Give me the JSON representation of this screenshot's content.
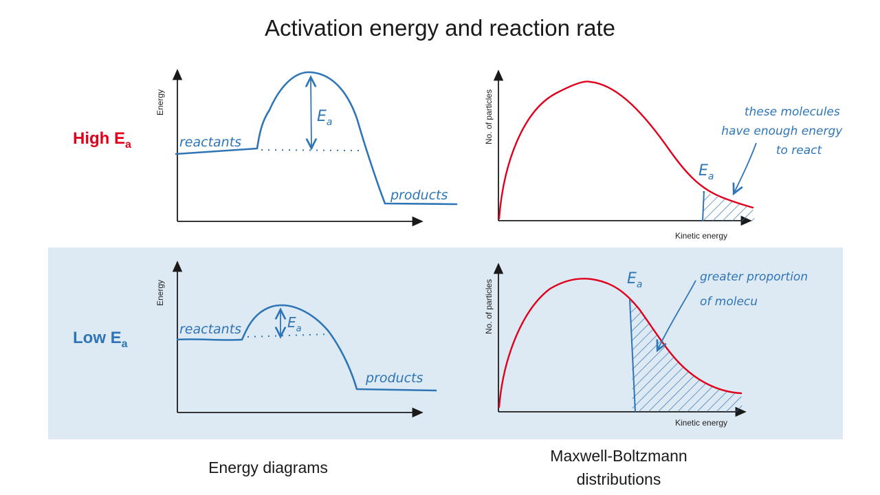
{
  "title": "Activation energy and reaction rate",
  "rows": {
    "high": {
      "label_main": "High E",
      "label_sub": "a"
    },
    "low": {
      "label_main": "Low E",
      "label_sub": "a"
    }
  },
  "captions": {
    "left": "Energy diagrams",
    "right_line1": "Maxwell-Boltzmann",
    "right_line2": "distributions"
  },
  "energy_diagram": {
    "y_axis_label": "Energy",
    "reactants_label": "reactants",
    "products_label": "products",
    "ea_label_main": "E",
    "ea_label_sub": "a"
  },
  "mb_distribution": {
    "y_axis_label": "No. of particles",
    "x_axis_label": "Kinetic energy",
    "ea_label_main": "E",
    "ea_label_sub": "a"
  },
  "annotations": {
    "high_note": [
      "these molecules",
      "have enough energy",
      "to react"
    ],
    "low_note": [
      "greater proportion",
      "of molecu"
    ]
  },
  "colors": {
    "curve_red": "#e0001b",
    "hand_blue": "#2e75b6",
    "axis": "#1a1a1a",
    "low_band": "#dde9f3"
  }
}
